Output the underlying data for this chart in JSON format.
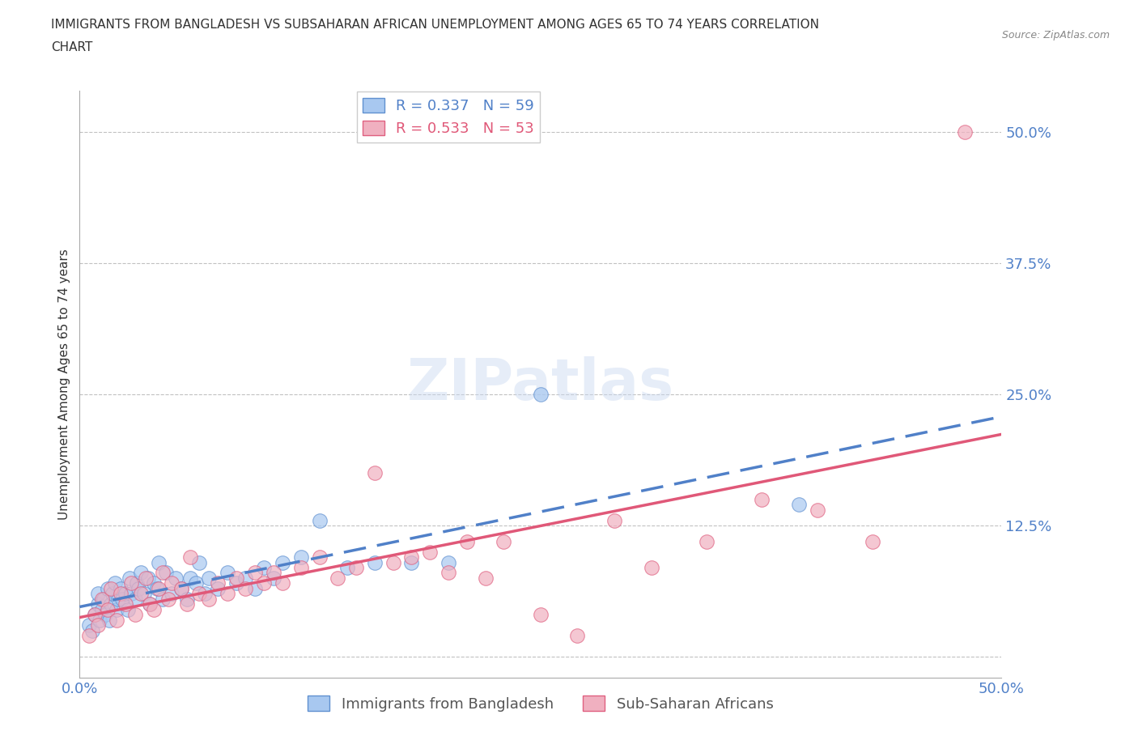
{
  "title_line1": "IMMIGRANTS FROM BANGLADESH VS SUBSAHARAN AFRICAN UNEMPLOYMENT AMONG AGES 65 TO 74 YEARS CORRELATION",
  "title_line2": "CHART",
  "source": "Source: ZipAtlas.com",
  "ylabel": "Unemployment Among Ages 65 to 74 years",
  "xlim": [
    0.0,
    0.5
  ],
  "ylim": [
    -0.02,
    0.54
  ],
  "xticks": [
    0.0,
    0.1,
    0.2,
    0.3,
    0.4,
    0.5
  ],
  "xticklabels": [
    "0.0%",
    "",
    "",
    "",
    "",
    "50.0%"
  ],
  "yticks": [
    0.0,
    0.125,
    0.25,
    0.375,
    0.5
  ],
  "yticklabels": [
    "",
    "12.5%",
    "25.0%",
    "37.5%",
    "50.0%"
  ],
  "blue_scatter_color": "#a8c8f0",
  "blue_edge_color": "#6090d0",
  "pink_scatter_color": "#f0b0c0",
  "pink_edge_color": "#e06080",
  "blue_line_color": "#5080c8",
  "pink_line_color": "#e05878",
  "tick_label_color": "#5080c8",
  "R_blue": 0.337,
  "N_blue": 59,
  "R_pink": 0.533,
  "N_pink": 53,
  "legend_label_blue": "Immigrants from Bangladesh",
  "legend_label_pink": "Sub-Saharan Africans",
  "watermark": "ZIPatlas",
  "blue_x": [
    0.005,
    0.007,
    0.008,
    0.01,
    0.01,
    0.011,
    0.012,
    0.013,
    0.014,
    0.015,
    0.016,
    0.017,
    0.018,
    0.019,
    0.02,
    0.021,
    0.022,
    0.023,
    0.025,
    0.026,
    0.027,
    0.028,
    0.03,
    0.031,
    0.032,
    0.033,
    0.035,
    0.037,
    0.038,
    0.04,
    0.042,
    0.043,
    0.045,
    0.047,
    0.05,
    0.052,
    0.055,
    0.058,
    0.06,
    0.063,
    0.065,
    0.068,
    0.07,
    0.075,
    0.08,
    0.085,
    0.09,
    0.095,
    0.1,
    0.105,
    0.11,
    0.12,
    0.13,
    0.145,
    0.16,
    0.18,
    0.2,
    0.25,
    0.39
  ],
  "blue_y": [
    0.03,
    0.025,
    0.04,
    0.05,
    0.06,
    0.035,
    0.045,
    0.055,
    0.04,
    0.065,
    0.035,
    0.05,
    0.06,
    0.07,
    0.045,
    0.055,
    0.065,
    0.055,
    0.06,
    0.045,
    0.075,
    0.06,
    0.055,
    0.07,
    0.065,
    0.08,
    0.06,
    0.075,
    0.05,
    0.07,
    0.065,
    0.09,
    0.055,
    0.08,
    0.06,
    0.075,
    0.065,
    0.055,
    0.075,
    0.07,
    0.09,
    0.06,
    0.075,
    0.065,
    0.08,
    0.07,
    0.075,
    0.065,
    0.085,
    0.075,
    0.09,
    0.095,
    0.13,
    0.085,
    0.09,
    0.09,
    0.09,
    0.25,
    0.145
  ],
  "pink_x": [
    0.005,
    0.008,
    0.01,
    0.012,
    0.015,
    0.017,
    0.02,
    0.022,
    0.025,
    0.028,
    0.03,
    0.033,
    0.036,
    0.038,
    0.04,
    0.043,
    0.045,
    0.048,
    0.05,
    0.055,
    0.058,
    0.06,
    0.065,
    0.07,
    0.075,
    0.08,
    0.085,
    0.09,
    0.095,
    0.1,
    0.105,
    0.11,
    0.12,
    0.13,
    0.14,
    0.15,
    0.16,
    0.17,
    0.18,
    0.19,
    0.2,
    0.21,
    0.22,
    0.23,
    0.25,
    0.27,
    0.29,
    0.31,
    0.34,
    0.37,
    0.4,
    0.43,
    0.48
  ],
  "pink_y": [
    0.02,
    0.04,
    0.03,
    0.055,
    0.045,
    0.065,
    0.035,
    0.06,
    0.05,
    0.07,
    0.04,
    0.06,
    0.075,
    0.05,
    0.045,
    0.065,
    0.08,
    0.055,
    0.07,
    0.065,
    0.05,
    0.095,
    0.06,
    0.055,
    0.07,
    0.06,
    0.075,
    0.065,
    0.08,
    0.07,
    0.08,
    0.07,
    0.085,
    0.095,
    0.075,
    0.085,
    0.175,
    0.09,
    0.095,
    0.1,
    0.08,
    0.11,
    0.075,
    0.11,
    0.04,
    0.02,
    0.13,
    0.085,
    0.11,
    0.15,
    0.14,
    0.11,
    0.5
  ]
}
